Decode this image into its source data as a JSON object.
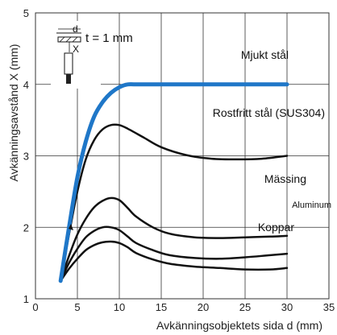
{
  "chart_data": {
    "type": "line",
    "xlabel": "Avkänningsobjektets sida d (mm)",
    "ylabel": "Avkänningsavstånd X (mm)",
    "xlim": [
      0,
      35
    ],
    "ylim": [
      1,
      5
    ],
    "x_ticks": [
      "0",
      "5",
      "10",
      "15",
      "20",
      "25",
      "30",
      "35"
    ],
    "y_ticks": [
      "1",
      "2",
      "3",
      "4",
      "5"
    ],
    "grid": true,
    "inset": {
      "thickness_text": "t = 1 mm",
      "label_d": "d",
      "label_x": "X"
    },
    "series": [
      {
        "name": "Mjukt stål",
        "color": "#1f77c8",
        "points": [
          [
            3,
            1.25
          ],
          [
            4,
            2.0
          ],
          [
            5,
            2.7
          ],
          [
            6,
            3.2
          ],
          [
            7,
            3.55
          ],
          [
            8,
            3.75
          ],
          [
            9,
            3.88
          ],
          [
            10,
            3.96
          ],
          [
            11,
            4.0
          ],
          [
            12,
            4.0
          ],
          [
            15,
            4.0
          ],
          [
            20,
            4.0
          ],
          [
            25,
            4.0
          ],
          [
            30,
            4.0
          ]
        ]
      },
      {
        "name": "Rostfritt stål (SUS304)",
        "color": "#111111",
        "points": [
          [
            3,
            1.25
          ],
          [
            4,
            1.9
          ],
          [
            5,
            2.5
          ],
          [
            6,
            2.95
          ],
          [
            7,
            3.22
          ],
          [
            8,
            3.37
          ],
          [
            9,
            3.43
          ],
          [
            10,
            3.43
          ],
          [
            11,
            3.38
          ],
          [
            13,
            3.25
          ],
          [
            15,
            3.12
          ],
          [
            18,
            3.01
          ],
          [
            21,
            2.96
          ],
          [
            24,
            2.95
          ],
          [
            27,
            2.96
          ],
          [
            30,
            3.0
          ]
        ]
      },
      {
        "name": "Mässing",
        "color": "#111111",
        "points": [
          [
            3,
            1.25
          ],
          [
            4,
            1.6
          ],
          [
            5,
            1.9
          ],
          [
            6,
            2.12
          ],
          [
            7,
            2.28
          ],
          [
            8,
            2.37
          ],
          [
            9,
            2.41
          ],
          [
            10,
            2.38
          ],
          [
            11,
            2.27
          ],
          [
            12,
            2.15
          ],
          [
            14,
            2.0
          ],
          [
            16,
            1.91
          ],
          [
            19,
            1.86
          ],
          [
            22,
            1.85
          ],
          [
            25,
            1.86
          ],
          [
            28,
            1.87
          ],
          [
            30,
            1.88
          ]
        ]
      },
      {
        "name": "Aluminum",
        "color": "#111111",
        "points": [
          [
            3,
            1.25
          ],
          [
            4,
            1.5
          ],
          [
            5,
            1.7
          ],
          [
            6,
            1.86
          ],
          [
            7,
            1.95
          ],
          [
            8,
            2.0
          ],
          [
            9,
            2.0
          ],
          [
            10,
            1.96
          ],
          [
            11,
            1.87
          ],
          [
            12,
            1.78
          ],
          [
            14,
            1.68
          ],
          [
            16,
            1.61
          ],
          [
            19,
            1.57
          ],
          [
            22,
            1.56
          ],
          [
            25,
            1.58
          ],
          [
            28,
            1.61
          ],
          [
            30,
            1.63
          ]
        ]
      },
      {
        "name": "Koppar",
        "color": "#111111",
        "points": [
          [
            3,
            1.25
          ],
          [
            4,
            1.42
          ],
          [
            5,
            1.56
          ],
          [
            6,
            1.68
          ],
          [
            7,
            1.75
          ],
          [
            8,
            1.79
          ],
          [
            9,
            1.8
          ],
          [
            10,
            1.78
          ],
          [
            11,
            1.72
          ],
          [
            12,
            1.64
          ],
          [
            14,
            1.55
          ],
          [
            16,
            1.49
          ],
          [
            19,
            1.45
          ],
          [
            22,
            1.43
          ],
          [
            25,
            1.41
          ],
          [
            28,
            1.41
          ],
          [
            30,
            1.43
          ]
        ]
      }
    ]
  }
}
